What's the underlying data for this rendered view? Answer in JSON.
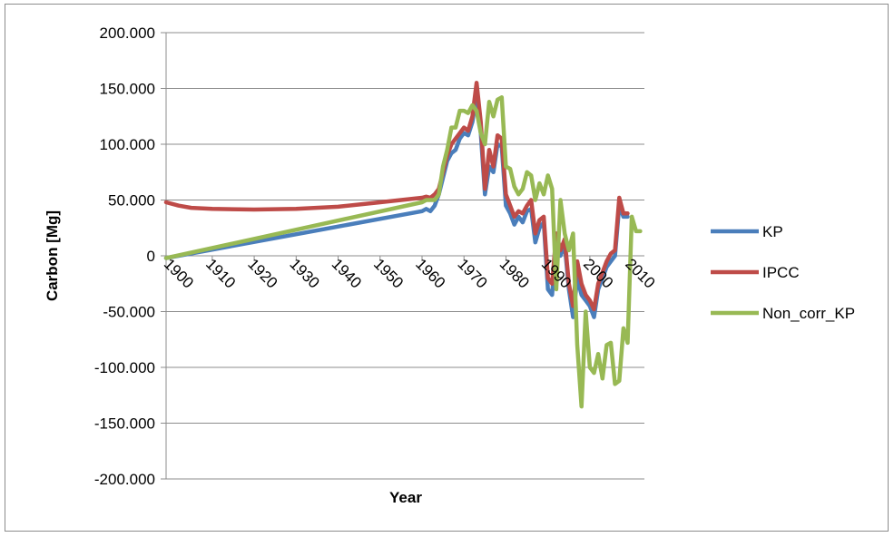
{
  "chart_data": {
    "type": "line",
    "title": "",
    "xlabel": "Year",
    "ylabel": "Carbon [Mg]",
    "x_ticks": [
      "1900",
      "1910",
      "1920",
      "1930",
      "1940",
      "1950",
      "1960",
      "1970",
      "1980",
      "1990",
      "2000",
      "2010"
    ],
    "y_ticks": [
      "200.000",
      "150.000",
      "100.000",
      "50.000",
      "0",
      "-50.000",
      "-100.000",
      "-150.000",
      "-200.000"
    ],
    "xlim": [
      1899,
      2013
    ],
    "ylim": [
      -200,
      200
    ],
    "grid": true,
    "legend_position": "right",
    "series": [
      {
        "name": "KP",
        "color": "#4a7ebb",
        "points": [
          [
            1899,
            -2
          ],
          [
            1960,
            40
          ],
          [
            1961,
            42
          ],
          [
            1962,
            40
          ],
          [
            1963,
            45
          ],
          [
            1964,
            55
          ],
          [
            1965,
            70
          ],
          [
            1966,
            85
          ],
          [
            1967,
            92
          ],
          [
            1968,
            95
          ],
          [
            1969,
            105
          ],
          [
            1970,
            110
          ],
          [
            1971,
            108
          ],
          [
            1972,
            120
          ],
          [
            1973,
            145
          ],
          [
            1974,
            110
          ],
          [
            1975,
            55
          ],
          [
            1976,
            80
          ],
          [
            1977,
            75
          ],
          [
            1978,
            100
          ],
          [
            1979,
            98
          ],
          [
            1980,
            45
          ],
          [
            1981,
            38
          ],
          [
            1982,
            28
          ],
          [
            1983,
            35
          ],
          [
            1984,
            30
          ],
          [
            1985,
            40
          ],
          [
            1986,
            42
          ],
          [
            1987,
            12
          ],
          [
            1988,
            25
          ],
          [
            1989,
            30
          ],
          [
            1990,
            -30
          ],
          [
            1991,
            -35
          ],
          [
            1992,
            15
          ],
          [
            1993,
            0
          ],
          [
            1994,
            10
          ],
          [
            1995,
            -30
          ],
          [
            1996,
            -55
          ],
          [
            1997,
            -20
          ],
          [
            1998,
            -35
          ],
          [
            1999,
            -40
          ],
          [
            2000,
            -45
          ],
          [
            2001,
            -55
          ],
          [
            2002,
            -30
          ],
          [
            2003,
            -20
          ],
          [
            2004,
            -10
          ],
          [
            2005,
            -5
          ],
          [
            2006,
            0
          ],
          [
            2007,
            45
          ],
          [
            2008,
            35
          ],
          [
            2009,
            35
          ]
        ]
      },
      {
        "name": "IPCC",
        "color": "#be4b48",
        "points": [
          [
            1899,
            48
          ],
          [
            1902,
            45
          ],
          [
            1905,
            43
          ],
          [
            1910,
            42
          ],
          [
            1920,
            41.5
          ],
          [
            1930,
            42
          ],
          [
            1940,
            44
          ],
          [
            1950,
            48
          ],
          [
            1955,
            50
          ],
          [
            1960,
            52
          ],
          [
            1961,
            53
          ],
          [
            1962,
            52
          ],
          [
            1963,
            55
          ],
          [
            1964,
            60
          ],
          [
            1965,
            75
          ],
          [
            1966,
            90
          ],
          [
            1967,
            100
          ],
          [
            1968,
            105
          ],
          [
            1969,
            110
          ],
          [
            1970,
            115
          ],
          [
            1971,
            112
          ],
          [
            1972,
            125
          ],
          [
            1973,
            155
          ],
          [
            1974,
            120
          ],
          [
            1975,
            60
          ],
          [
            1976,
            95
          ],
          [
            1977,
            80
          ],
          [
            1978,
            108
          ],
          [
            1979,
            105
          ],
          [
            1980,
            55
          ],
          [
            1981,
            45
          ],
          [
            1982,
            35
          ],
          [
            1983,
            40
          ],
          [
            1984,
            38
          ],
          [
            1985,
            45
          ],
          [
            1986,
            50
          ],
          [
            1987,
            20
          ],
          [
            1988,
            32
          ],
          [
            1989,
            35
          ],
          [
            1990,
            -20
          ],
          [
            1991,
            -25
          ],
          [
            1992,
            20
          ],
          [
            1993,
            5
          ],
          [
            1994,
            15
          ],
          [
            1995,
            -25
          ],
          [
            1996,
            -45
          ],
          [
            1997,
            -5
          ],
          [
            1998,
            -25
          ],
          [
            1999,
            -35
          ],
          [
            2000,
            -40
          ],
          [
            2001,
            -48
          ],
          [
            2002,
            -25
          ],
          [
            2003,
            -15
          ],
          [
            2004,
            -5
          ],
          [
            2005,
            2
          ],
          [
            2006,
            5
          ],
          [
            2007,
            52
          ],
          [
            2008,
            38
          ],
          [
            2009,
            38
          ]
        ]
      },
      {
        "name": "Non_corr_KP",
        "color": "#98b954",
        "points": [
          [
            1899,
            -2
          ],
          [
            1960,
            48
          ],
          [
            1961,
            50
          ],
          [
            1962,
            50
          ],
          [
            1963,
            50
          ],
          [
            1964,
            55
          ],
          [
            1965,
            80
          ],
          [
            1966,
            95
          ],
          [
            1967,
            115
          ],
          [
            1968,
            115
          ],
          [
            1969,
            130
          ],
          [
            1970,
            130
          ],
          [
            1971,
            128
          ],
          [
            1972,
            135
          ],
          [
            1973,
            130
          ],
          [
            1974,
            110
          ],
          [
            1975,
            100
          ],
          [
            1976,
            138
          ],
          [
            1977,
            125
          ],
          [
            1978,
            140
          ],
          [
            1979,
            142
          ],
          [
            1980,
            80
          ],
          [
            1981,
            78
          ],
          [
            1982,
            62
          ],
          [
            1983,
            55
          ],
          [
            1984,
            60
          ],
          [
            1985,
            75
          ],
          [
            1986,
            72
          ],
          [
            1987,
            50
          ],
          [
            1988,
            65
          ],
          [
            1989,
            55
          ],
          [
            1990,
            72
          ],
          [
            1991,
            60
          ],
          [
            1992,
            -30
          ],
          [
            1993,
            50
          ],
          [
            1994,
            20
          ],
          [
            1995,
            5
          ],
          [
            1996,
            20
          ],
          [
            1997,
            -80
          ],
          [
            1998,
            -135
          ],
          [
            1999,
            -50
          ],
          [
            2000,
            -100
          ],
          [
            2001,
            -105
          ],
          [
            2002,
            -88
          ],
          [
            2003,
            -110
          ],
          [
            2004,
            -80
          ],
          [
            2005,
            -78
          ],
          [
            2006,
            -115
          ],
          [
            2007,
            -112
          ],
          [
            2008,
            -65
          ],
          [
            2009,
            -78
          ],
          [
            2010,
            35
          ],
          [
            2011,
            22
          ],
          [
            2012,
            22
          ]
        ]
      }
    ]
  }
}
